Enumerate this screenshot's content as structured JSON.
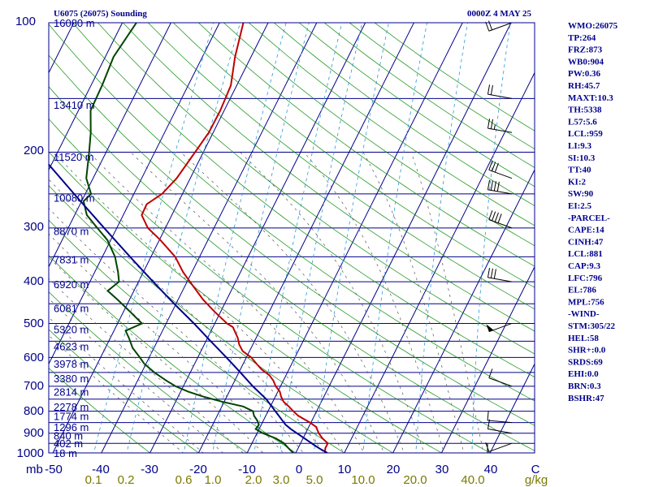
{
  "header": {
    "station": "U6075 (26075) Sounding",
    "time": "0000Z  4 MAY 25"
  },
  "indices": [
    "WMO:26075",
    "TP:264",
    "FRZ:873",
    "WB0:904",
    "PW:0.36",
    "RH:45.7",
    "MAXT:10.3",
    "TH:5338",
    "L57:5.6",
    "LCL:959",
    "LI:9.3",
    "SI:10.3",
    "TT:40",
    "KI:2",
    "SW:90",
    "EI:2.5",
    "-PARCEL-",
    "CAPE:14",
    "CINH:47",
    "LCL:881",
    "CAP:9.3",
    "LFC:796",
    "EL:786",
    "MPL:756",
    "-WIND-",
    "STM:305/22",
    "HEL:58",
    "SHR+:0.0",
    "SRDS:69",
    "EHI:0.0",
    "BRN:0.3",
    "BSHR:47"
  ],
  "chart_data": {
    "type": "skew-t",
    "title": "U6075 (26075) Sounding",
    "x_axis": {
      "label": "C",
      "range": [
        -50,
        50
      ],
      "ticks": [
        "-50",
        "-40",
        "-30",
        "-20",
        "-10",
        "0",
        "10",
        "20",
        "30",
        "40"
      ]
    },
    "y_axis": {
      "label": "mb",
      "scale": "log",
      "range": [
        1000,
        100
      ],
      "ticks": [
        "1000",
        "900",
        "800",
        "700",
        "600",
        "500",
        "400",
        "300",
        "200",
        "100"
      ]
    },
    "mixing_ratio_axis": {
      "label": "g/kg",
      "ticks": [
        "0.1",
        "0.2",
        "0.6",
        "1.0",
        "2.0",
        "3.0",
        "5.0",
        "10.0",
        "20.0",
        "40.0"
      ]
    },
    "height_labels": [
      {
        "p": 1000,
        "label": "18 m"
      },
      {
        "p": 950,
        "label": "402 m"
      },
      {
        "p": 910,
        "label": "840 m"
      },
      {
        "p": 870,
        "label": "1296 m"
      },
      {
        "p": 820,
        "label": "1774 m"
      },
      {
        "p": 780,
        "label": "2278 m"
      },
      {
        "p": 720,
        "label": "2814 m"
      },
      {
        "p": 670,
        "label": "3380 m"
      },
      {
        "p": 620,
        "label": "3978 m"
      },
      {
        "p": 565,
        "label": "4623 m"
      },
      {
        "p": 515,
        "label": "5320 m"
      },
      {
        "p": 460,
        "label": "6081 m"
      },
      {
        "p": 405,
        "label": "6920 m"
      },
      {
        "p": 355,
        "label": "7831 m"
      },
      {
        "p": 305,
        "label": "8870 m"
      },
      {
        "p": 255,
        "label": "10080 m"
      },
      {
        "p": 205,
        "label": "11520 m"
      },
      {
        "p": 155,
        "label": "13410 m"
      },
      {
        "p": 100,
        "label": "16080 m"
      }
    ],
    "series": [
      {
        "name": "temperature",
        "color": "#c00000",
        "points": [
          {
            "p": 1000,
            "t": 6
          },
          {
            "p": 975,
            "t": 5.6
          },
          {
            "p": 950,
            "t": 5.6
          },
          {
            "p": 925,
            "t": 4
          },
          {
            "p": 900,
            "t": 2.7
          },
          {
            "p": 870,
            "t": 1.5
          },
          {
            "p": 850,
            "t": -0.2
          },
          {
            "p": 820,
            "t": -3.3
          },
          {
            "p": 800,
            "t": -4.8
          },
          {
            "p": 780,
            "t": -6.2
          },
          {
            "p": 760,
            "t": -7.8
          },
          {
            "p": 740,
            "t": -8.8
          },
          {
            "p": 720,
            "t": -9.6
          },
          {
            "p": 700,
            "t": -11
          },
          {
            "p": 680,
            "t": -12
          },
          {
            "p": 660,
            "t": -13.4
          },
          {
            "p": 640,
            "t": -15.6
          },
          {
            "p": 620,
            "t": -17.3
          },
          {
            "p": 600,
            "t": -19
          },
          {
            "p": 580,
            "t": -21.4
          },
          {
            "p": 560,
            "t": -22.8
          },
          {
            "p": 540,
            "t": -23.8
          },
          {
            "p": 510,
            "t": -25.9
          },
          {
            "p": 500,
            "t": -27.5
          },
          {
            "p": 470,
            "t": -31.2
          },
          {
            "p": 440,
            "t": -34.9
          },
          {
            "p": 400,
            "t": -39.4
          },
          {
            "p": 380,
            "t": -41.8
          },
          {
            "p": 350,
            "t": -45
          },
          {
            "p": 320,
            "t": -49.8
          },
          {
            "p": 300,
            "t": -53.6
          },
          {
            "p": 280,
            "t": -56.2
          },
          {
            "p": 264,
            "t": -56.3
          },
          {
            "p": 250,
            "t": -54.2
          },
          {
            "p": 230,
            "t": -52.8
          },
          {
            "p": 200,
            "t": -51.7
          },
          {
            "p": 180,
            "t": -50.9
          },
          {
            "p": 160,
            "t": -50.8
          },
          {
            "p": 140,
            "t": -51.2
          },
          {
            "p": 120,
            "t": -53.3
          },
          {
            "p": 100,
            "t": -55.1
          }
        ]
      },
      {
        "name": "dewpoint",
        "color": "#004400",
        "points": [
          {
            "p": 1000,
            "t": -0.5
          },
          {
            "p": 975,
            "t": -2
          },
          {
            "p": 950,
            "t": -3.4
          },
          {
            "p": 925,
            "t": -5.6
          },
          {
            "p": 900,
            "t": -8.8
          },
          {
            "p": 880,
            "t": -10.7
          },
          {
            "p": 860,
            "t": -10.5
          },
          {
            "p": 840,
            "t": -11.3
          },
          {
            "p": 820,
            "t": -12.4
          },
          {
            "p": 800,
            "t": -13.1
          },
          {
            "p": 780,
            "t": -15.6
          },
          {
            "p": 760,
            "t": -20.5
          },
          {
            "p": 740,
            "t": -24.8
          },
          {
            "p": 720,
            "t": -28.5
          },
          {
            "p": 700,
            "t": -31.6
          },
          {
            "p": 680,
            "t": -34
          },
          {
            "p": 650,
            "t": -37.4
          },
          {
            "p": 620,
            "t": -40.4
          },
          {
            "p": 600,
            "t": -41.9
          },
          {
            "p": 570,
            "t": -44.4
          },
          {
            "p": 540,
            "t": -46.2
          },
          {
            "p": 520,
            "t": -47.6
          },
          {
            "p": 500,
            "t": -45
          },
          {
            "p": 470,
            "t": -48.6
          },
          {
            "p": 440,
            "t": -52.5
          },
          {
            "p": 420,
            "t": -55.4
          },
          {
            "p": 400,
            "t": -54
          },
          {
            "p": 380,
            "t": -55.2
          },
          {
            "p": 350,
            "t": -57.4
          },
          {
            "p": 320,
            "t": -60.7
          },
          {
            "p": 300,
            "t": -64
          },
          {
            "p": 280,
            "t": -67.5
          },
          {
            "p": 260,
            "t": -69.6
          },
          {
            "p": 250,
            "t": -68.8
          },
          {
            "p": 230,
            "t": -71.4
          },
          {
            "p": 200,
            "t": -73.5
          },
          {
            "p": 180,
            "t": -75.2
          },
          {
            "p": 160,
            "t": -77.5
          },
          {
            "p": 140,
            "t": -77.7
          },
          {
            "p": 120,
            "t": -78.3
          },
          {
            "p": 100,
            "t": -77.1
          }
        ]
      },
      {
        "name": "parcel",
        "color": "#00008b",
        "points": [
          {
            "p": 1000,
            "t": 6.5
          },
          {
            "p": 980,
            "t": 4.7
          },
          {
            "p": 959,
            "t": 3
          },
          {
            "p": 930,
            "t": 0.7
          },
          {
            "p": 900,
            "t": -1.8
          },
          {
            "p": 881,
            "t": -3.4
          },
          {
            "p": 860,
            "t": -5
          },
          {
            "p": 800,
            "t": -8.5
          },
          {
            "p": 750,
            "t": -11.6
          },
          {
            "p": 700,
            "t": -15.7
          },
          {
            "p": 650,
            "t": -19.7
          },
          {
            "p": 600,
            "t": -24.1
          },
          {
            "p": 550,
            "t": -29
          },
          {
            "p": 500,
            "t": -34.3
          },
          {
            "p": 450,
            "t": -40.4
          },
          {
            "p": 400,
            "t": -47
          },
          {
            "p": 350,
            "t": -54.3
          },
          {
            "p": 300,
            "t": -62.6
          },
          {
            "p": 250,
            "t": -72.3
          },
          {
            "p": 200,
            "t": -84
          },
          {
            "p": 150,
            "t": -98.5
          },
          {
            "p": 120,
            "t": -110.3
          }
        ]
      }
    ],
    "wind_barbs": [
      {
        "p": 1000,
        "dir": 270,
        "spd": 10
      },
      {
        "p": 950,
        "dir": 250,
        "spd": 10
      },
      {
        "p": 900,
        "dir": 280,
        "spd": 10
      },
      {
        "p": 850,
        "dir": 275,
        "spd": 10
      },
      {
        "p": 700,
        "dir": 290,
        "spd": 10
      },
      {
        "p": 500,
        "dir": 250,
        "spd": 50
      },
      {
        "p": 400,
        "dir": 280,
        "spd": 30
      },
      {
        "p": 300,
        "dir": 290,
        "spd": 40
      },
      {
        "p": 250,
        "dir": 280,
        "spd": 40
      },
      {
        "p": 230,
        "dir": 290,
        "spd": 30
      },
      {
        "p": 180,
        "dir": 280,
        "spd": 25
      },
      {
        "p": 150,
        "dir": 280,
        "spd": 20
      },
      {
        "p": 100,
        "dir": 250,
        "spd": 20
      }
    ]
  }
}
